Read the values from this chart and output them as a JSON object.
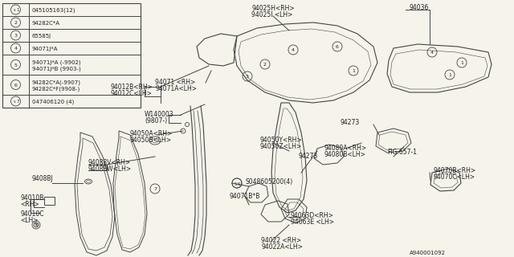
{
  "bg_color": "#f5f3ea",
  "line_color": "#444444",
  "text_color": "#222222",
  "legend_items": [
    {
      "num": "1",
      "s_prefix": true,
      "part": "045105163(12)"
    },
    {
      "num": "2",
      "s_prefix": false,
      "part": "94282C*A"
    },
    {
      "num": "3",
      "s_prefix": false,
      "part": "65585J"
    },
    {
      "num": "4",
      "s_prefix": false,
      "part": "94071J*A"
    },
    {
      "num": "5",
      "s_prefix": false,
      "part": "94071J*A (-9902)\n94071J*B (9903-)"
    },
    {
      "num": "6",
      "s_prefix": false,
      "part": "94282C*A(-9907)\n94282C*F(9908-)"
    },
    {
      "num": "7",
      "s_prefix": true,
      "part": "047406120 (4)"
    }
  ]
}
